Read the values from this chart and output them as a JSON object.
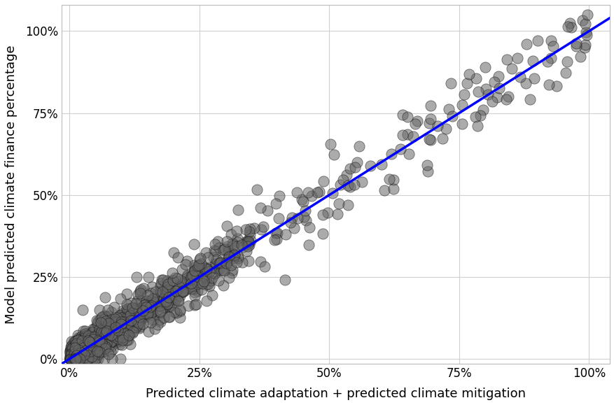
{
  "title": "",
  "xlabel": "Predicted climate adaptation + predicted climate mitigation",
  "ylabel": "Model predicted climate finance percentage",
  "xlim": [
    -0.015,
    1.04
  ],
  "ylim": [
    -0.015,
    1.08
  ],
  "xticks": [
    0.0,
    0.25,
    0.5,
    0.75,
    1.0
  ],
  "yticks": [
    0.0,
    0.25,
    0.5,
    0.75,
    1.0
  ],
  "xtick_labels": [
    "0%",
    "25%",
    "50%",
    "75%",
    "100%"
  ],
  "ytick_labels": [
    "0%",
    "25%",
    "50%",
    "75%",
    "100%"
  ],
  "line_color": "#0000FF",
  "line_x": [
    -0.015,
    1.04
  ],
  "line_y": [
    -0.015,
    1.04
  ],
  "dot_color": "#666666",
  "dot_alpha": 0.55,
  "dot_size": 120,
  "dot_edgecolor": "#111111",
  "dot_edgewidth": 0.6,
  "background_color": "#ffffff",
  "grid_color": "#d0d0d0",
  "xlabel_fontsize": 13,
  "ylabel_fontsize": 13,
  "tick_fontsize": 12,
  "seed": 42,
  "n_dense": 700,
  "n_sparse": 200,
  "noise_near_diag": 0.025,
  "noise_far": 0.06
}
